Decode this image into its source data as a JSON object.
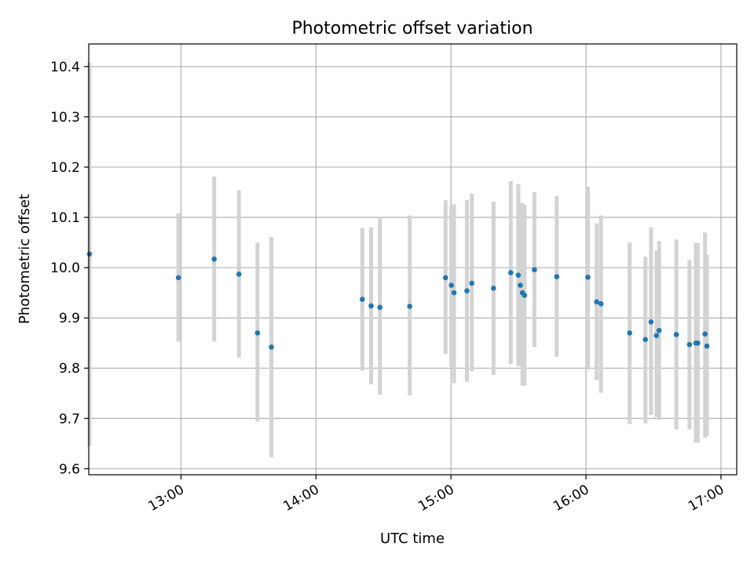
{
  "chart_data": {
    "type": "scatter",
    "title": "Photometric offset variation",
    "xlabel": "UTC time",
    "ylabel": "Photometric offset",
    "x_unit": "UTC time of day (HH:MM)",
    "xlim": [
      "12:19",
      "17:07"
    ],
    "ylim": [
      9.588,
      10.445
    ],
    "x_ticks": [
      "13:00",
      "14:00",
      "15:00",
      "16:00",
      "17:00"
    ],
    "y_ticks": [
      "9.6",
      "9.7",
      "9.8",
      "9.9",
      "10.0",
      "10.1",
      "10.2",
      "10.3",
      "10.4"
    ],
    "grid": true,
    "colors": {
      "point": "#1f77b4",
      "errorbar": "#d3d3d3",
      "grid": "#b0b0b0"
    },
    "points": [
      {
        "x": "12:19:20",
        "y": 10.027,
        "low": 9.645,
        "high": 10.408
      },
      {
        "x": "12:58:50",
        "y": 9.98,
        "low": 9.853,
        "high": 10.108
      },
      {
        "x": "13:14:45",
        "y": 10.017,
        "low": 9.853,
        "high": 10.181
      },
      {
        "x": "13:25:45",
        "y": 9.987,
        "low": 9.821,
        "high": 10.154
      },
      {
        "x": "13:34:00",
        "y": 9.87,
        "low": 9.694,
        "high": 10.05
      },
      {
        "x": "13:40:10",
        "y": 9.842,
        "low": 9.623,
        "high": 10.061
      },
      {
        "x": "14:20:35",
        "y": 9.937,
        "low": 9.795,
        "high": 10.079
      },
      {
        "x": "14:24:30",
        "y": 9.924,
        "low": 9.768,
        "high": 10.08
      },
      {
        "x": "14:28:25",
        "y": 9.921,
        "low": 9.747,
        "high": 10.098
      },
      {
        "x": "14:41:40",
        "y": 9.923,
        "low": 9.746,
        "high": 10.104
      },
      {
        "x": "14:57:35",
        "y": 9.98,
        "low": 9.828,
        "high": 10.134
      },
      {
        "x": "15:00:10",
        "y": 9.965,
        "low": 9.804,
        "high": 10.124
      },
      {
        "x": "15:01:20",
        "y": 9.95,
        "low": 9.77,
        "high": 10.126
      },
      {
        "x": "15:07:05",
        "y": 9.954,
        "low": 9.773,
        "high": 10.135
      },
      {
        "x": "15:09:15",
        "y": 9.969,
        "low": 9.794,
        "high": 10.147
      },
      {
        "x": "15:18:55",
        "y": 9.959,
        "low": 9.786,
        "high": 10.131
      },
      {
        "x": "15:26:35",
        "y": 9.99,
        "low": 9.808,
        "high": 10.172
      },
      {
        "x": "15:29:55",
        "y": 9.985,
        "low": 9.804,
        "high": 10.166
      },
      {
        "x": "15:30:50",
        "y": 9.965,
        "low": 9.805,
        "high": 10.129
      },
      {
        "x": "15:31:45",
        "y": 9.95,
        "low": 9.766,
        "high": 10.128
      },
      {
        "x": "15:32:40",
        "y": 9.945,
        "low": 9.765,
        "high": 10.125
      },
      {
        "x": "15:37:05",
        "y": 9.996,
        "low": 9.842,
        "high": 10.15
      },
      {
        "x": "15:47:00",
        "y": 9.982,
        "low": 9.823,
        "high": 10.142
      },
      {
        "x": "16:00:50",
        "y": 9.981,
        "low": 9.797,
        "high": 10.161
      },
      {
        "x": "16:04:45",
        "y": 9.932,
        "low": 9.777,
        "high": 10.088
      },
      {
        "x": "16:06:40",
        "y": 9.928,
        "low": 9.751,
        "high": 10.104
      },
      {
        "x": "16:19:25",
        "y": 9.87,
        "low": 9.689,
        "high": 10.05
      },
      {
        "x": "16:26:25",
        "y": 9.857,
        "low": 9.69,
        "high": 10.022
      },
      {
        "x": "16:28:55",
        "y": 9.892,
        "low": 9.707,
        "high": 10.08
      },
      {
        "x": "16:31:20",
        "y": 9.865,
        "low": 9.703,
        "high": 10.034
      },
      {
        "x": "16:32:30",
        "y": 9.875,
        "low": 9.697,
        "high": 10.053
      },
      {
        "x": "16:40:10",
        "y": 9.867,
        "low": 9.678,
        "high": 10.056
      },
      {
        "x": "16:46:00",
        "y": 9.847,
        "low": 9.678,
        "high": 10.015
      },
      {
        "x": "16:48:50",
        "y": 9.85,
        "low": 9.652,
        "high": 10.049
      },
      {
        "x": "16:49:40",
        "y": 9.85,
        "low": 9.652,
        "high": 10.049
      },
      {
        "x": "16:52:55",
        "y": 9.868,
        "low": 9.662,
        "high": 10.07
      },
      {
        "x": "16:53:45",
        "y": 9.844,
        "low": 9.665,
        "high": 10.025
      }
    ]
  }
}
